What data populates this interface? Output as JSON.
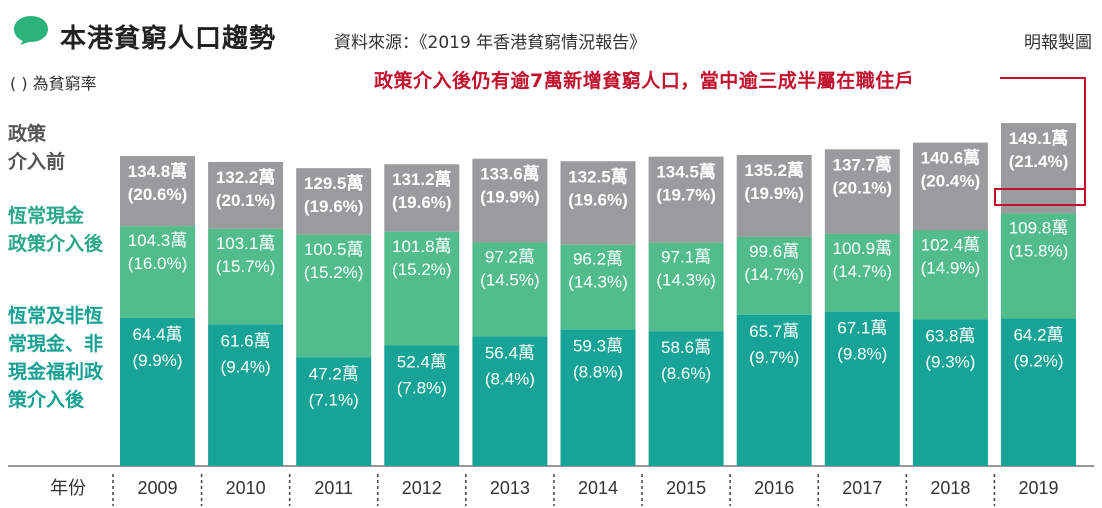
{
  "header": {
    "title": "本港貧窮人口趨勢",
    "source": "資料來源：《2019 年香港貧窮情況報告》",
    "credit": "明報製圖",
    "note": "( ) 為貧窮率",
    "highlight": "政策介入後仍有逾7萬新增貧窮人口，當中逾三成半屬在職住戶"
  },
  "row_labels": {
    "before": "政策\n介入前",
    "regular": "恆常現金\n政策介入後",
    "all": "恆常及非恆\n常現金、非\n現金福利政\n策介入後"
  },
  "colors": {
    "before": "#9a9b9d",
    "regular": "#52bc8b",
    "all": "#17a396",
    "highlight": "#c0112d"
  },
  "chart_data": {
    "type": "bar",
    "xlabel": "年份",
    "categories": [
      "2009",
      "2010",
      "2011",
      "2012",
      "2013",
      "2014",
      "2015",
      "2016",
      "2017",
      "2018",
      "2019"
    ],
    "ylim": [
      0,
      150
    ],
    "series": [
      {
        "name": "政策介入前",
        "values": [
          134.8,
          132.2,
          129.5,
          131.2,
          133.6,
          132.5,
          134.5,
          135.2,
          137.7,
          140.6,
          149.1
        ],
        "rates": [
          "20.6%",
          "20.1%",
          "19.6%",
          "19.6%",
          "19.9%",
          "19.6%",
          "19.7%",
          "19.9%",
          "20.1%",
          "20.4%",
          "21.4%"
        ]
      },
      {
        "name": "恆常現金政策介入後",
        "values": [
          104.3,
          103.1,
          100.5,
          101.8,
          97.2,
          96.2,
          97.1,
          99.6,
          100.9,
          102.4,
          109.8
        ],
        "rates": [
          "16.0%",
          "15.7%",
          "15.2%",
          "15.2%",
          "14.5%",
          "14.3%",
          "14.3%",
          "14.7%",
          "14.7%",
          "14.9%",
          "15.8%"
        ]
      },
      {
        "name": "恆常及非恆常現金、非現金福利政策介入後",
        "values": [
          64.4,
          61.6,
          47.2,
          52.4,
          56.4,
          59.3,
          58.6,
          65.7,
          67.1,
          63.8,
          64.2
        ],
        "rates": [
          "9.9%",
          "9.4%",
          "7.1%",
          "7.8%",
          "8.4%",
          "8.8%",
          "8.6%",
          "9.7%",
          "9.8%",
          "9.3%",
          "9.2%"
        ]
      }
    ],
    "unit": "萬",
    "grid": false,
    "legend": "left"
  }
}
